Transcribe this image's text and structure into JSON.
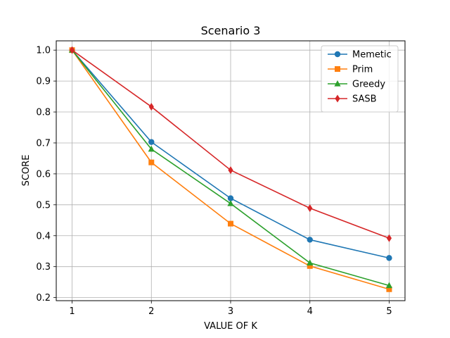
{
  "chart_data": {
    "type": "line",
    "title": "Scenario 3",
    "xlabel": "VALUE OF K",
    "ylabel": "SCORE",
    "x": [
      1,
      2,
      3,
      4,
      5
    ],
    "xlim": [
      0.8,
      5.2
    ],
    "ylim": [
      0.19,
      1.03
    ],
    "xticks": [
      "1",
      "2",
      "3",
      "4",
      "5"
    ],
    "yticks": [
      "0.2",
      "0.3",
      "0.4",
      "0.5",
      "0.6",
      "0.7",
      "0.8",
      "0.9",
      "1.0"
    ],
    "grid": true,
    "legend_position": "top-right",
    "series": [
      {
        "name": "Memetic",
        "color": "#1f77b4",
        "marker": "circle",
        "values": [
          1.0,
          0.703,
          0.521,
          0.387,
          0.328
        ]
      },
      {
        "name": "Prim",
        "color": "#ff7f0e",
        "marker": "square",
        "values": [
          1.0,
          0.637,
          0.439,
          0.302,
          0.227
        ]
      },
      {
        "name": "Greedy",
        "color": "#2ca02c",
        "marker": "triangle",
        "values": [
          1.0,
          0.68,
          0.504,
          0.312,
          0.239
        ]
      },
      {
        "name": "SASB",
        "color": "#d62728",
        "marker": "diamond",
        "values": [
          1.0,
          0.817,
          0.612,
          0.489,
          0.392
        ]
      }
    ]
  }
}
